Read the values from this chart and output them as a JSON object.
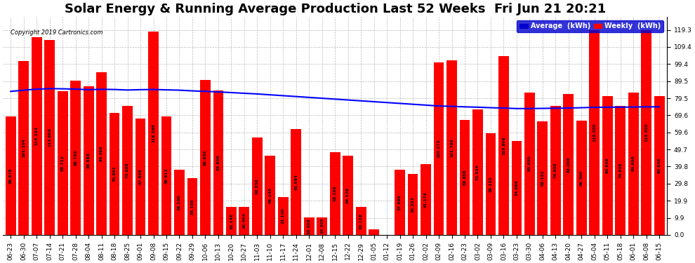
{
  "title": "Solar Energy & Running Average Production Last 52 Weeks  Fri Jun 21 20:21",
  "copyright": "Copyright 2019 Cartronics.com",
  "background_color": "#ffffff",
  "bar_color": "#ff0000",
  "line_color": "#0000ff",
  "categories": [
    "06-23",
    "06-30",
    "07-07",
    "07-14",
    "07-21",
    "07-28",
    "08-04",
    "08-11",
    "08-18",
    "08-25",
    "09-01",
    "09-08",
    "09-15",
    "09-22",
    "09-29",
    "10-06",
    "10-13",
    "10-20",
    "10-27",
    "11-03",
    "11-10",
    "11-17",
    "11-24",
    "12-01",
    "12-08",
    "12-15",
    "12-22",
    "12-29",
    "01-05",
    "01-12",
    "01-19",
    "01-26",
    "02-02",
    "02-09",
    "02-16",
    "02-23",
    "03-02",
    "03-09",
    "03-16",
    "03-23",
    "03-30",
    "04-06",
    "04-13",
    "04-20",
    "04-27",
    "05-04",
    "05-11",
    "05-18",
    "06-01",
    "06-08",
    "06-15"
  ],
  "values": [
    68.976,
    101.104,
    115.224,
    113.604,
    83.712,
    89.76,
    86.668,
    94.496,
    70.992,
    74.908,
    67.808,
    118.296,
    68.912,
    38.1,
    33.1,
    89.956,
    83.908,
    16.148,
    16.404,
    56.558,
    46.14,
    22.14,
    61.584,
    10.308,
    10.3,
    48.16,
    46.128,
    16.128,
    3.012,
    0.0,
    37.996,
    35.553,
    41.176,
    100.272,
    101.78,
    66.808,
    72.924,
    59.22,
    103.908,
    54.668,
    83.0,
    66.152,
    74.908,
    82.0,
    66.3,
    119.3,
    80.948,
    74.908,
    83.0,
    119.3,
    80.948
  ],
  "avg_values": [
    83.5,
    84.2,
    84.8,
    85.1,
    85.0,
    84.8,
    84.5,
    84.7,
    84.6,
    84.3,
    84.5,
    84.6,
    84.4,
    84.2,
    83.8,
    83.5,
    83.2,
    82.8,
    82.4,
    82.0,
    81.5,
    81.0,
    80.5,
    80.0,
    79.5,
    79.0,
    78.5,
    78.0,
    77.5,
    77.0,
    76.5,
    76.0,
    75.5,
    75.0,
    74.8,
    74.5,
    74.3,
    74.0,
    73.8,
    73.5,
    73.5,
    73.6,
    73.7,
    73.8,
    74.0,
    74.2,
    74.3,
    74.3,
    74.4,
    74.5,
    74.5
  ],
  "yticks": [
    0.0,
    9.9,
    19.9,
    29.8,
    39.8,
    49.7,
    59.6,
    69.6,
    79.5,
    89.5,
    99.4,
    109.4,
    119.3
  ],
  "ylim": [
    0,
    127
  ],
  "legend_avg_color": "#0000cd",
  "legend_weekly_color": "#ff0000",
  "title_fontsize": 13,
  "tick_fontsize": 6.5
}
